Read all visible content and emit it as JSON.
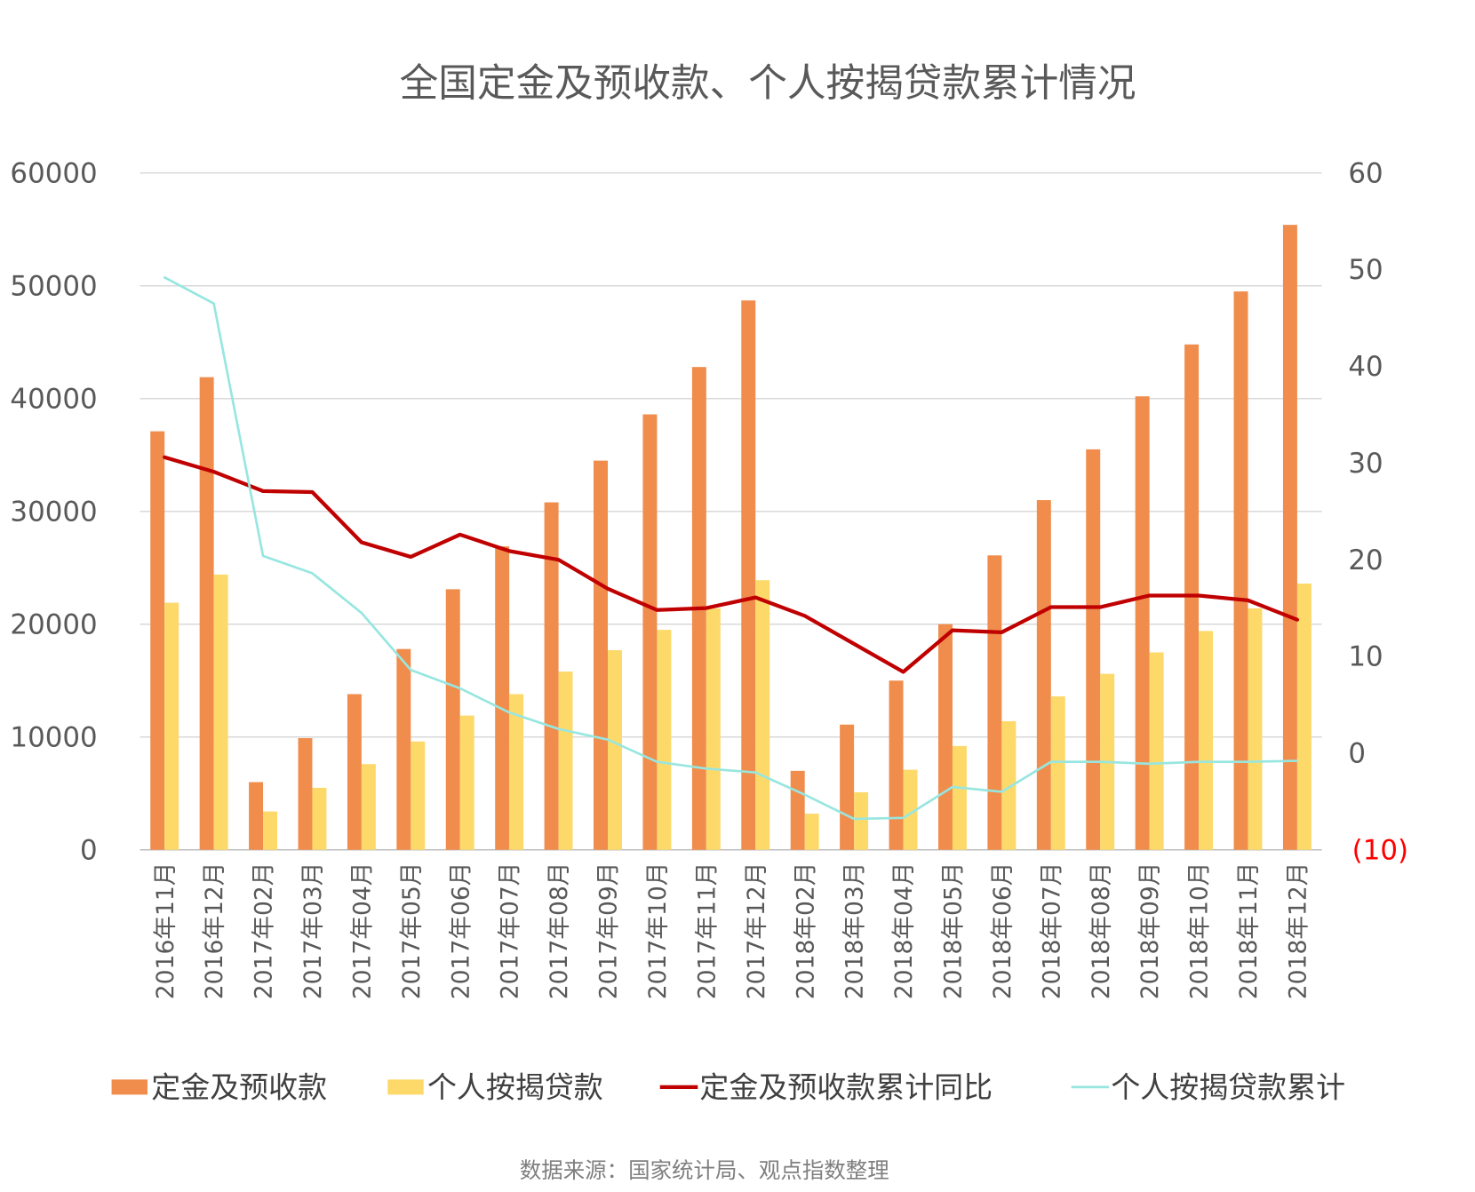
{
  "chart_data": {
    "type": "bar+line",
    "title": "全国定金及预收款、个人按揭贷款累计情况",
    "source": "数据来源：国家统计局、观点指数整理",
    "categories": [
      "2016年11月",
      "2016年12月",
      "2017年02月",
      "2017年03月",
      "2017年04月",
      "2017年05月",
      "2017年06月",
      "2017年07月",
      "2017年08月",
      "2017年09月",
      "2017年10月",
      "2017年11月",
      "2017年12月",
      "2018年02月",
      "2018年03月",
      "2018年04月",
      "2018年05月",
      "2018年06月",
      "2018年07月",
      "2018年08月",
      "2018年09月",
      "2018年10月",
      "2018年11月",
      "2018年12月"
    ],
    "left_axis": {
      "ylim": [
        0,
        60000
      ],
      "ticks": [
        "0",
        "10000",
        "20000",
        "30000",
        "40000",
        "50000",
        "60000"
      ]
    },
    "right_axis": {
      "ylim": [
        -10,
        60
      ],
      "ticks": [
        "(10)",
        "0",
        "10",
        "20",
        "30",
        "40",
        "50",
        "60"
      ],
      "negative_tick_color": "#ff0000"
    },
    "grid": true,
    "legend_position": "bottom",
    "series": [
      {
        "name": "定金及预收款",
        "type": "bar",
        "axis": "left",
        "color": "#f08c4c",
        "values": [
          37100,
          41900,
          6000,
          9900,
          13800,
          17800,
          23100,
          26900,
          30800,
          34500,
          38600,
          42800,
          48700,
          7000,
          11100,
          15000,
          20000,
          26100,
          31000,
          35500,
          40200,
          44800,
          49500,
          55400
        ]
      },
      {
        "name": "个人按揭贷款",
        "type": "bar",
        "axis": "left",
        "color": "#fdd96a",
        "values": [
          21900,
          24400,
          3400,
          5500,
          7600,
          9600,
          11900,
          13800,
          15800,
          17700,
          19500,
          21400,
          23900,
          3200,
          5100,
          7100,
          9200,
          11400,
          13600,
          15600,
          17500,
          19400,
          21400,
          23600
        ]
      },
      {
        "name": "定金及预收款累计同比",
        "type": "line",
        "axis": "right",
        "color": "#c00000",
        "values": [
          30.6,
          29.1,
          27.1,
          27.0,
          21.8,
          20.3,
          22.6,
          20.9,
          20.0,
          17.0,
          14.8,
          15.0,
          16.1,
          14.2,
          11.3,
          8.4,
          12.7,
          12.5,
          15.1,
          15.1,
          16.3,
          16.3,
          15.8,
          13.8
        ]
      },
      {
        "name": "个人按揭贷款累计",
        "type": "line",
        "axis": "right",
        "color": "#97e6e0",
        "values": [
          49.2,
          46.5,
          20.4,
          18.6,
          14.5,
          8.6,
          6.7,
          4.2,
          2.5,
          1.4,
          -0.9,
          -1.6,
          -2.0,
          -4.3,
          -6.8,
          -6.7,
          -3.5,
          -4.0,
          -0.9,
          -0.9,
          -1.1,
          -0.9,
          -0.9,
          -0.8
        ]
      }
    ]
  }
}
